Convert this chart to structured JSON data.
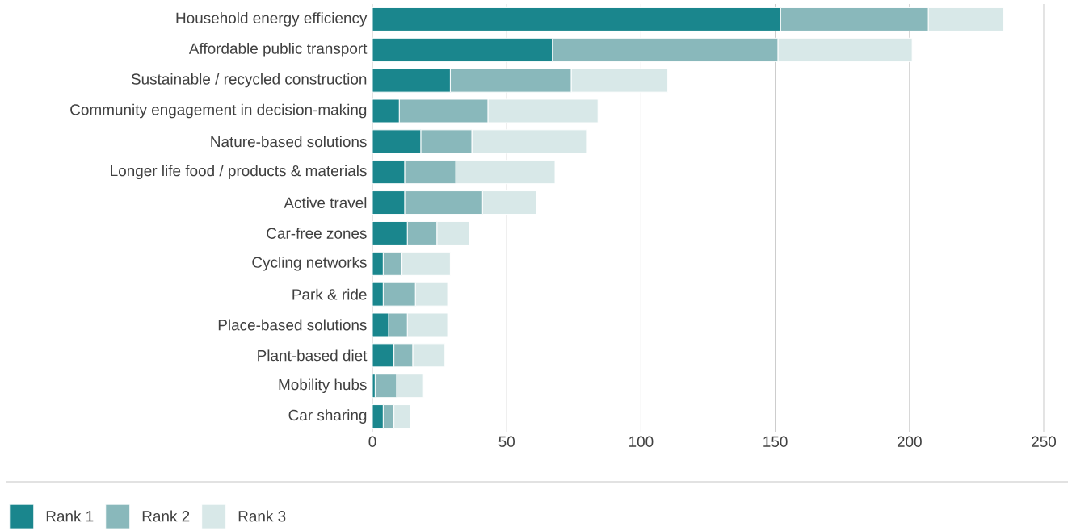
{
  "chart_data": {
    "type": "bar",
    "orientation": "horizontal",
    "stacked": true,
    "categories": [
      "Household energy efficiency",
      "Affordable public transport",
      "Sustainable / recycled construction",
      "Community engagement in decision-making",
      "Nature-based solutions",
      "Longer life food / products & materials",
      "Active travel",
      "Car-free zones",
      "Cycling networks",
      "Park & ride",
      "Place-based solutions",
      "Plant-based diet",
      "Mobility hubs",
      "Car sharing"
    ],
    "series": [
      {
        "name": "Rank 1",
        "color": "#1a868d",
        "values": [
          152,
          67,
          29,
          10,
          18,
          12,
          12,
          13,
          4,
          4,
          6,
          8,
          1,
          4
        ]
      },
      {
        "name": "Rank 2",
        "color": "#89b8bb",
        "values": [
          55,
          84,
          45,
          33,
          19,
          19,
          29,
          11,
          7,
          12,
          7,
          7,
          8,
          4
        ]
      },
      {
        "name": "Rank 3",
        "color": "#d8e8e8",
        "values": [
          28,
          50,
          36,
          41,
          43,
          37,
          20,
          12,
          18,
          12,
          15,
          12,
          10,
          6
        ]
      }
    ],
    "xlim": [
      0,
      250
    ],
    "xticks": [
      0,
      50,
      100,
      150,
      200,
      250
    ],
    "grid": "x",
    "legend": "bottom"
  }
}
